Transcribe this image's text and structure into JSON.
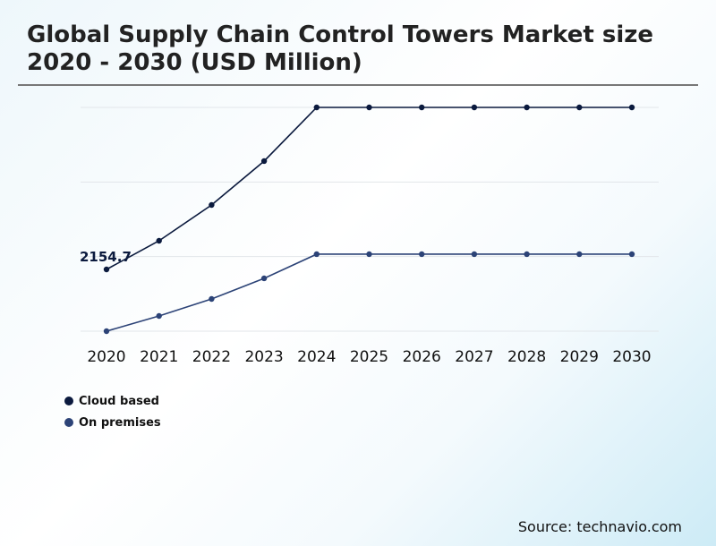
{
  "chart_data": {
    "type": "line",
    "title": "Global Supply Chain Control Towers Market size 2020 - 2030 (USD Million)",
    "xlabel": "",
    "ylabel": "",
    "categories": [
      "2020",
      "2021",
      "2022",
      "2023",
      "2024",
      "2025",
      "2026",
      "2027",
      "2028",
      "2029",
      "2030"
    ],
    "ylim": [
      0,
      7807
    ],
    "grid": true,
    "y_gridlines": [
      0,
      2602,
      5205,
      7807
    ],
    "legend_position": "bottom-left",
    "series": [
      {
        "name": "Cloud based",
        "color": "#0b1a3e",
        "values": [
          2154.7,
          3154,
          4403,
          5934,
          7807,
          7807,
          7807,
          7807,
          7807,
          7807,
          7807
        ]
      },
      {
        "name": "On premises",
        "color": "#2c4377",
        "values": [
          0,
          531,
          1124,
          1843,
          2686,
          2686,
          2686,
          2686,
          2686,
          2686,
          2686
        ]
      }
    ],
    "annotations": [
      {
        "series": "Cloud based",
        "x": "2020",
        "text": "2154.7"
      }
    ]
  },
  "source": "Source: technavio.com"
}
